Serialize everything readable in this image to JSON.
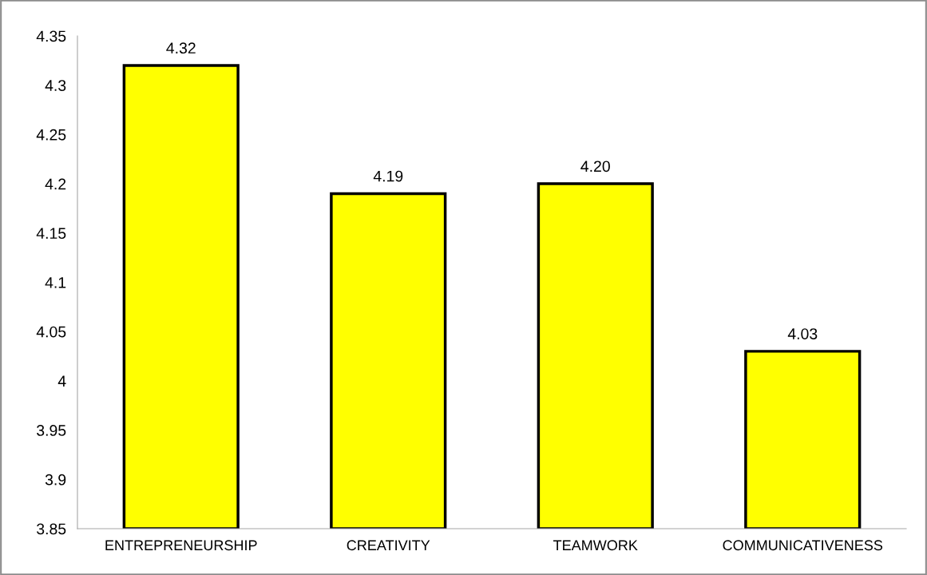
{
  "chart_data": {
    "type": "bar",
    "categories": [
      "ENTREPRENEURSHIP",
      "CREATIVITY",
      "TEAMWORK",
      "COMMUNICATIVENESS"
    ],
    "values": [
      4.32,
      4.19,
      4.2,
      4.03
    ],
    "value_labels": [
      "4.32",
      "4.19",
      "4.20",
      "4.03"
    ],
    "color": "#ffff00",
    "ylim": [
      3.85,
      4.35
    ],
    "yticks": [
      3.85,
      3.9,
      3.95,
      4,
      4.05,
      4.1,
      4.15,
      4.2,
      4.25,
      4.3,
      4.35
    ],
    "grid": false,
    "legend": false
  }
}
